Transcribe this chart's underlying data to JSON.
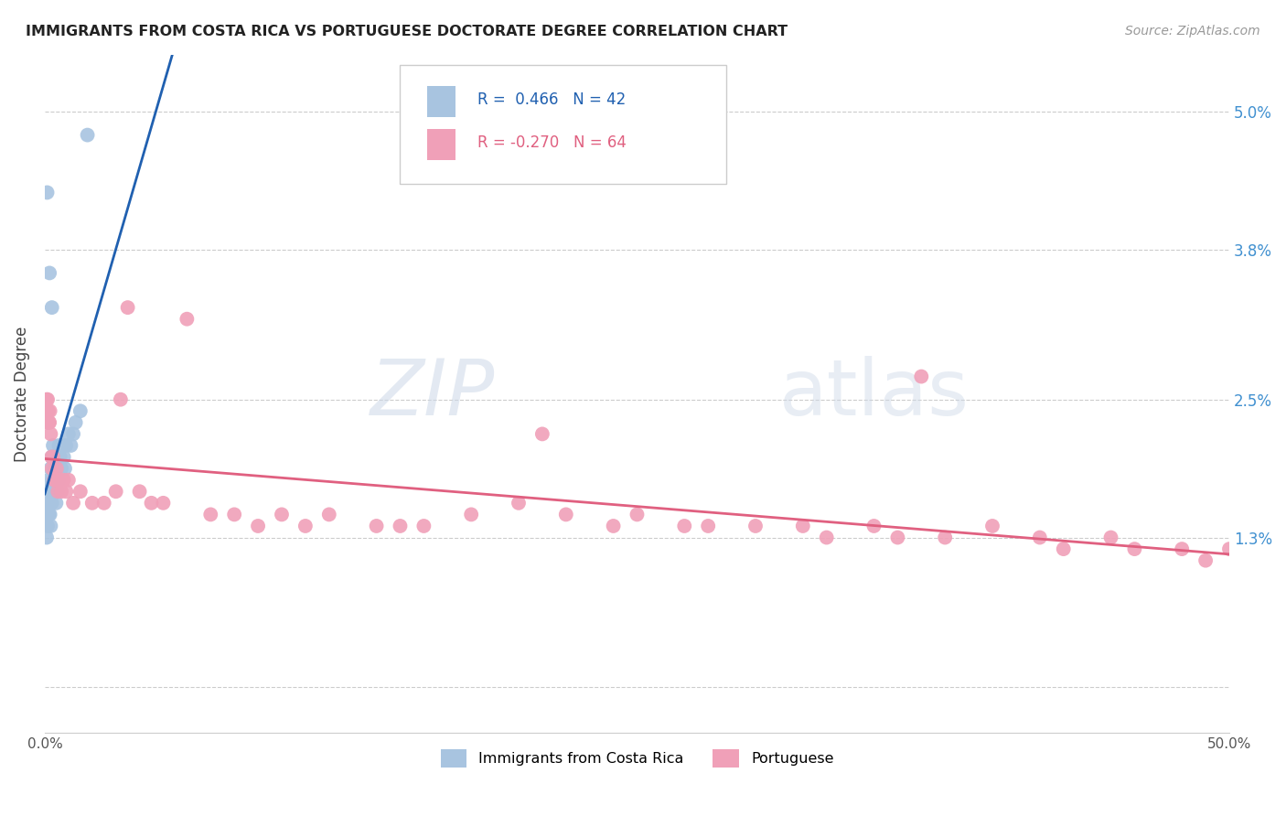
{
  "title": "IMMIGRANTS FROM COSTA RICA VS PORTUGUESE DOCTORATE DEGREE CORRELATION CHART",
  "source": "Source: ZipAtlas.com",
  "ylabel": "Doctorate Degree",
  "yticks": [
    0.0,
    1.3,
    2.5,
    3.8,
    5.0
  ],
  "ytick_labels": [
    "",
    "1.3%",
    "2.5%",
    "3.8%",
    "5.0%"
  ],
  "xlim": [
    0.0,
    50.0
  ],
  "ylim": [
    -0.4,
    5.5
  ],
  "watermark": "ZIPatlas",
  "legend_series": [
    {
      "label": "Immigrants from Costa Rica",
      "R": 0.466,
      "N": 42,
      "color": "#a8c4e0",
      "line_color": "#2060b0"
    },
    {
      "label": "Portuguese",
      "R": -0.27,
      "N": 64,
      "color": "#f0a0b8",
      "line_color": "#e06080"
    }
  ],
  "costa_rica_x": [
    0.05,
    0.08,
    0.1,
    0.12,
    0.15,
    0.15,
    0.18,
    0.2,
    0.22,
    0.25,
    0.25,
    0.28,
    0.3,
    0.3,
    0.32,
    0.35,
    0.35,
    0.38,
    0.4,
    0.42,
    0.45,
    0.48,
    0.5,
    0.52,
    0.55,
    0.58,
    0.6,
    0.65,
    0.7,
    0.75,
    0.8,
    0.85,
    0.9,
    1.0,
    1.1,
    1.2,
    1.3,
    1.5,
    0.1,
    0.2,
    0.3,
    1.8
  ],
  "costa_rica_y": [
    1.5,
    1.3,
    1.7,
    1.4,
    1.6,
    1.8,
    1.5,
    1.6,
    1.5,
    1.4,
    1.9,
    1.7,
    1.6,
    2.0,
    1.8,
    1.7,
    2.1,
    1.8,
    1.9,
    2.0,
    1.8,
    1.6,
    2.0,
    1.7,
    1.9,
    1.8,
    2.1,
    2.0,
    1.9,
    2.1,
    2.0,
    1.9,
    2.1,
    2.2,
    2.1,
    2.2,
    2.3,
    2.4,
    4.3,
    3.6,
    3.3,
    4.8
  ],
  "portuguese_x": [
    0.05,
    0.1,
    0.12,
    0.15,
    0.18,
    0.2,
    0.22,
    0.25,
    0.28,
    0.3,
    0.35,
    0.4,
    0.45,
    0.5,
    0.55,
    0.6,
    0.7,
    0.8,
    0.9,
    1.0,
    1.2,
    1.5,
    2.0,
    2.5,
    3.0,
    3.5,
    4.0,
    4.5,
    5.0,
    6.0,
    7.0,
    8.0,
    9.0,
    10.0,
    11.0,
    12.0,
    14.0,
    15.0,
    16.0,
    18.0,
    20.0,
    22.0,
    24.0,
    25.0,
    27.0,
    28.0,
    30.0,
    32.0,
    33.0,
    35.0,
    36.0,
    38.0,
    40.0,
    42.0,
    43.0,
    45.0,
    46.0,
    48.0,
    49.0,
    50.0,
    0.08,
    3.2,
    21.0,
    37.0
  ],
  "portuguese_y": [
    2.4,
    2.3,
    2.5,
    2.4,
    2.3,
    2.3,
    2.4,
    2.2,
    2.0,
    1.9,
    2.0,
    1.8,
    1.8,
    1.9,
    1.7,
    1.8,
    1.7,
    1.8,
    1.7,
    1.8,
    1.6,
    1.7,
    1.6,
    1.6,
    1.7,
    3.3,
    1.7,
    1.6,
    1.6,
    3.2,
    1.5,
    1.5,
    1.4,
    1.5,
    1.4,
    1.5,
    1.4,
    1.4,
    1.4,
    1.5,
    1.6,
    1.5,
    1.4,
    1.5,
    1.4,
    1.4,
    1.4,
    1.4,
    1.3,
    1.4,
    1.3,
    1.3,
    1.4,
    1.3,
    1.2,
    1.3,
    1.2,
    1.2,
    1.1,
    1.2,
    2.5,
    2.5,
    2.2,
    2.7
  ]
}
